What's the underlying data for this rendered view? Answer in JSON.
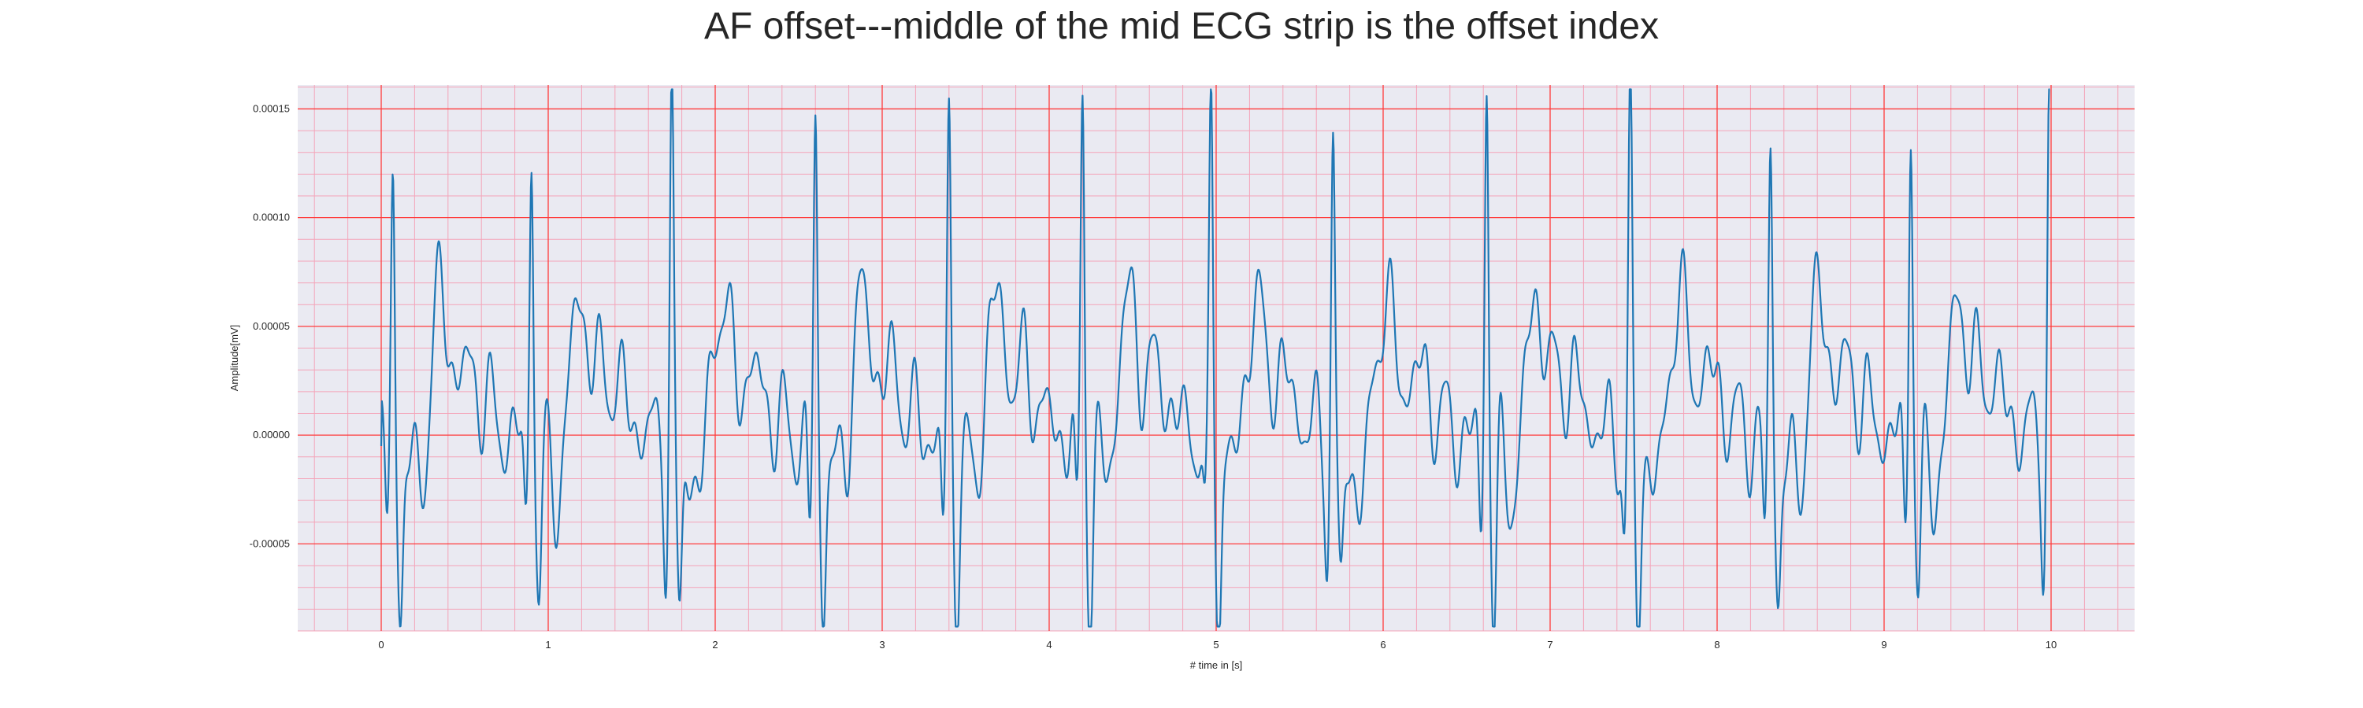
{
  "chart_data": {
    "type": "line",
    "title": "AF offset---middle of the mid ECG strip is the offset index",
    "xlabel": "# time in [s]",
    "ylabel": "Amplitude[mV]",
    "xlim": [
      -0.5,
      10.5
    ],
    "ylim": [
      -9e-05,
      0.000161
    ],
    "xticks": [
      0,
      1,
      2,
      3,
      4,
      5,
      6,
      7,
      8,
      9,
      10
    ],
    "xtick_labels": [
      "0",
      "1",
      "2",
      "3",
      "4",
      "5",
      "6",
      "7",
      "8",
      "9",
      "10"
    ],
    "yticks": [
      -5e-05,
      0.0,
      5e-05,
      0.0001,
      0.00015
    ],
    "ytick_labels": [
      "-0.00005",
      "0.00000",
      "0.00005",
      "0.00010",
      "0.00015"
    ],
    "grid": true,
    "background_color": "#eaeaf2",
    "major_grid_color": "#ff3b3b",
    "minor_grid_color": "#f4a3b8",
    "line_color": "#1f77b4",
    "r_peaks": [
      {
        "t": 0.07,
        "amp": 0.000106,
        "s_depth": -7.2e-05
      },
      {
        "t": 0.9,
        "amp": 0.000122,
        "s_depth": -6.4e-05
      },
      {
        "t": 1.74,
        "amp": 0.00014,
        "s_depth": -7.6e-05
      },
      {
        "t": 2.6,
        "amp": 0.000125,
        "s_depth": -6.7e-05
      },
      {
        "t": 3.4,
        "amp": 0.000124,
        "s_depth": -6.1e-05
      },
      {
        "t": 4.2,
        "amp": 0.00014,
        "s_depth": -6.7e-05
      },
      {
        "t": 4.97,
        "amp": 0.000136,
        "s_depth": -7.7e-05
      },
      {
        "t": 5.7,
        "amp": 0.000118,
        "s_depth": -6.5e-05
      },
      {
        "t": 6.62,
        "amp": 0.00015,
        "s_depth": -7.7e-05
      },
      {
        "t": 7.48,
        "amp": 0.000139,
        "s_depth": -7.8e-05
      },
      {
        "t": 8.32,
        "amp": 0.000111,
        "s_depth": -6.1e-05
      },
      {
        "t": 9.16,
        "amp": 0.000138,
        "s_depth": -6.8e-05
      },
      {
        "t": 9.99,
        "amp": 0.000143,
        "s_depth": -4.6e-05
      }
    ],
    "rhythm_note": "AF-like baseline between beats oscillates roughly between -0.00006 and 0.000045"
  }
}
